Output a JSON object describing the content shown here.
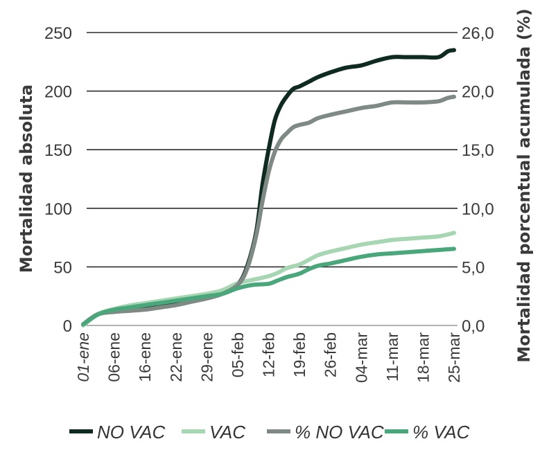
{
  "chart_data": {
    "type": "line",
    "ylabel_left": "Mortalidad absoluta",
    "ylabel_right": "Mortalidad porcentual acumulada (%)",
    "ylim_left": [
      0,
      250
    ],
    "ylim_right": [
      0,
      26.0
    ],
    "yticks_left": [
      "0",
      "50",
      "100",
      "150",
      "200",
      "250"
    ],
    "yticks_right": [
      "0,0",
      "5,0",
      "10,0",
      "15,0",
      "20,0",
      "26,0"
    ],
    "x_tick_labels": [
      "01-ene",
      "06-ene",
      "16-ene",
      "22-ene",
      "29-ene",
      "05-feb",
      "12-feb",
      "19-feb",
      "26-feb",
      "04-mar",
      "11-mar",
      "18-mar",
      "25-mar"
    ],
    "grid": true,
    "legend_position": "bottom",
    "series": [
      {
        "name": "NO VAC",
        "axis": "left",
        "color": "#0f2a20",
        "x": [
          0,
          0.5,
          1,
          1.5,
          2,
          2.5,
          3,
          3.5,
          4,
          4.5,
          5,
          5.3,
          5.6,
          5.8,
          6.0,
          6.2,
          6.4,
          6.6,
          6.8,
          7.0,
          7.3,
          7.6,
          8.0,
          8.5,
          9.0,
          9.5,
          10.0,
          10.5,
          11.0,
          11.5,
          11.8,
          12.0
        ],
        "values": [
          1,
          10,
          12,
          13,
          14,
          16,
          18,
          21,
          24,
          28,
          35,
          50,
          80,
          120,
          150,
          175,
          188,
          196,
          202,
          204,
          208,
          212,
          216,
          220,
          222,
          226,
          229,
          229,
          229,
          229,
          234,
          235
        ]
      },
      {
        "name": "VAC",
        "axis": "left",
        "color": "#a7d6b3",
        "x": [
          0,
          0.5,
          1,
          1.5,
          2,
          2.5,
          3,
          3.5,
          4,
          4.5,
          5,
          5.5,
          6.0,
          6.3,
          6.6,
          7.0,
          7.3,
          7.6,
          8.0,
          8.5,
          9.0,
          9.5,
          10.0,
          10.5,
          11.0,
          11.5,
          12.0
        ],
        "values": [
          0,
          10,
          14,
          17,
          19,
          21,
          23,
          25,
          27,
          30,
          36,
          39,
          42,
          45,
          49,
          52,
          56,
          60,
          63,
          66,
          69,
          71,
          73,
          74,
          75,
          76,
          79
        ]
      },
      {
        "name": "% NO VAC",
        "axis": "right",
        "color": "#7f8a85",
        "x": [
          0,
          0.5,
          1,
          1.5,
          2,
          2.5,
          3,
          3.5,
          4,
          4.5,
          5,
          5.3,
          5.6,
          5.8,
          6.0,
          6.2,
          6.4,
          6.6,
          6.8,
          7.0,
          7.3,
          7.6,
          8.0,
          8.5,
          9.0,
          9.5,
          10.0,
          10.5,
          11.0,
          11.5,
          11.8,
          12.0
        ],
        "values": [
          0.1,
          1.0,
          1.2,
          1.3,
          1.4,
          1.6,
          1.8,
          2.1,
          2.4,
          2.8,
          3.6,
          5.0,
          8.0,
          11.0,
          13.6,
          15.4,
          16.5,
          17.1,
          17.6,
          17.8,
          18.0,
          18.4,
          18.7,
          19.0,
          19.3,
          19.5,
          19.8,
          19.8,
          19.8,
          19.9,
          20.2,
          20.3
        ]
      },
      {
        "name": "% VAC",
        "axis": "right",
        "color": "#4aa77b",
        "x": [
          0,
          0.5,
          1,
          1.5,
          2,
          2.5,
          3,
          3.5,
          4,
          4.5,
          5,
          5.5,
          6.0,
          6.3,
          6.6,
          7.0,
          7.3,
          7.6,
          8.0,
          8.5,
          9.0,
          9.5,
          10.0,
          10.5,
          11.0,
          11.5,
          12.0
        ],
        "values": [
          0.1,
          1.0,
          1.4,
          1.6,
          1.8,
          2.0,
          2.2,
          2.4,
          2.6,
          2.8,
          3.3,
          3.6,
          3.7,
          4.0,
          4.3,
          4.6,
          5.0,
          5.3,
          5.5,
          5.8,
          6.1,
          6.3,
          6.4,
          6.5,
          6.6,
          6.7,
          6.8
        ]
      }
    ]
  }
}
